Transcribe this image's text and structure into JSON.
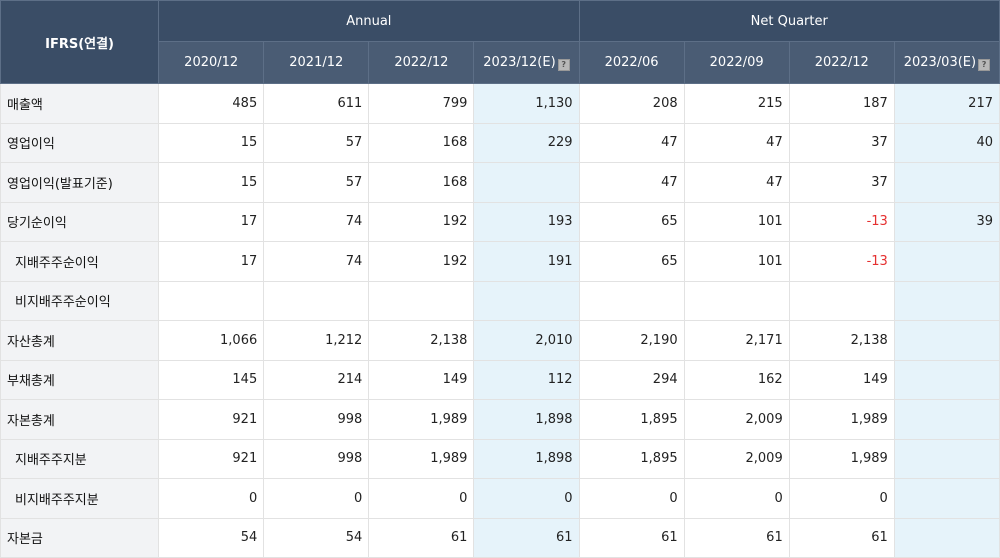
{
  "header": {
    "corner": "IFRS(연결)",
    "group_annual": "Annual",
    "group_quarter": "Net Quarter",
    "annual_periods": [
      "2020/12",
      "2021/12",
      "2022/12",
      "2023/12(E)"
    ],
    "quarter_periods": [
      "2022/06",
      "2022/09",
      "2022/12",
      "2023/03(E)"
    ]
  },
  "rows": [
    {
      "label": "매출액",
      "sub": false,
      "values": [
        "485",
        "611",
        "799",
        "1,130",
        "208",
        "215",
        "187",
        "217"
      ]
    },
    {
      "label": "영업이익",
      "sub": false,
      "values": [
        "15",
        "57",
        "168",
        "229",
        "47",
        "47",
        "37",
        "40"
      ]
    },
    {
      "label": "영업이익(발표기준)",
      "sub": false,
      "values": [
        "15",
        "57",
        "168",
        "",
        "47",
        "47",
        "37",
        ""
      ]
    },
    {
      "label": "당기순이익",
      "sub": false,
      "values": [
        "17",
        "74",
        "192",
        "193",
        "65",
        "101",
        "-13",
        "39"
      ]
    },
    {
      "label": "지배주주순이익",
      "sub": true,
      "values": [
        "17",
        "74",
        "192",
        "191",
        "65",
        "101",
        "-13",
        ""
      ]
    },
    {
      "label": "비지배주주순이익",
      "sub": true,
      "values": [
        "",
        "",
        "",
        "",
        "",
        "",
        "",
        ""
      ]
    },
    {
      "label": "자산총계",
      "sub": false,
      "values": [
        "1,066",
        "1,212",
        "2,138",
        "2,010",
        "2,190",
        "2,171",
        "2,138",
        ""
      ]
    },
    {
      "label": "부채총계",
      "sub": false,
      "values": [
        "145",
        "214",
        "149",
        "112",
        "294",
        "162",
        "149",
        ""
      ]
    },
    {
      "label": "자본총계",
      "sub": false,
      "values": [
        "921",
        "998",
        "1,989",
        "1,898",
        "1,895",
        "2,009",
        "1,989",
        ""
      ]
    },
    {
      "label": "지배주주지분",
      "sub": true,
      "values": [
        "921",
        "998",
        "1,989",
        "1,898",
        "1,895",
        "2,009",
        "1,989",
        ""
      ]
    },
    {
      "label": "비지배주주지분",
      "sub": true,
      "values": [
        "0",
        "0",
        "0",
        "0",
        "0",
        "0",
        "0",
        ""
      ]
    },
    {
      "label": "자본금",
      "sub": false,
      "values": [
        "54",
        "54",
        "61",
        "61",
        "61",
        "61",
        "61",
        ""
      ]
    }
  ],
  "colors": {
    "header_bg": "#3a4d66",
    "estimate_bg": "#e6f3fa",
    "negative": "#e53030",
    "label_bg": "#f2f3f5"
  }
}
